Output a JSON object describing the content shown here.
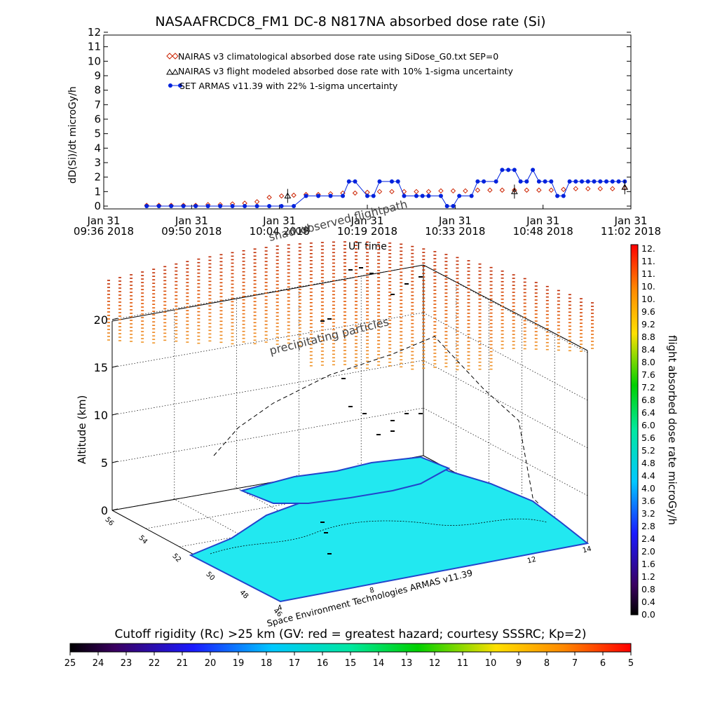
{
  "title": "NASAAFRCDC8_FM1 DC-8   N817NA absorbed dose rate (Si)",
  "top_ylabel": "dD(Si)/dt microGy/h",
  "top_xlabel": "UT time",
  "top_xticks": [
    {
      "date": "Jan 31",
      "time": "09:36 2018"
    },
    {
      "date": "Jan 31",
      "time": "09:50 2018"
    },
    {
      "date": "Jan 31",
      "time": "10:04 2018"
    },
    {
      "date": "Jan 31",
      "time": "10:19 2018"
    },
    {
      "date": "Jan 31",
      "time": "10:33 2018"
    },
    {
      "date": "Jan 31",
      "time": "10:48 2018"
    },
    {
      "date": "Jan 31",
      "time": "11:02 2018"
    }
  ],
  "legend": [
    "NAIRAS v3 climatological absorbed dose rate using SiDose_G0.txt SEP=0",
    "NAIRAS v3 flight modeled absorbed dose rate with 10% 1-sigma uncertainty",
    "SET ARMAS v11.39 with 22% 1-sigma uncertainty"
  ],
  "annotations": {
    "shadow": "shadow",
    "flightpath": "observed flightpath",
    "particles": "precipitating particles",
    "credit": "Space Environment Technologies ARMAS v11.39"
  },
  "z_axis_label": "Altitude (km)",
  "z_ticks": [
    "0",
    "5",
    "10",
    "15",
    "20"
  ],
  "lat_ticks": [
    "56",
    "54",
    "52",
    "50",
    "48",
    "46"
  ],
  "lon_ticks": [
    "4",
    "8",
    "12",
    "14"
  ],
  "right_colorbar": {
    "label": "flight absorbed dose rate microGy/h",
    "ticks": [
      "12.",
      "11.",
      "11.",
      "10.",
      "10.",
      "9.6",
      "9.2",
      "8.8",
      "8.4",
      "8.0",
      "7.6",
      "7.2",
      "6.8",
      "6.4",
      "6.0",
      "5.6",
      "5.2",
      "4.8",
      "4.4",
      "4.0",
      "3.6",
      "3.2",
      "2.8",
      "2.4",
      "2.0",
      "1.6",
      "1.2",
      "0.8",
      "0.4",
      "0.0"
    ]
  },
  "bottom_colorbar": {
    "title": "Cutoff rigidity (Rc) >25 km (GV: red = greatest hazard; courtesy SSSRC; Kp=2)",
    "ticks": [
      "25",
      "24",
      "23",
      "22",
      "21",
      "20",
      "19",
      "18",
      "17",
      "16",
      "15",
      "14",
      "13",
      "12",
      "11",
      "10",
      "9",
      "8",
      "7",
      "6",
      "5"
    ]
  },
  "colors": {
    "climatological": "#cc2200",
    "armas": "#0022dd",
    "map_fill": "#22e8f0",
    "coast": "#2244cc"
  },
  "chart_data": {
    "type": "line",
    "x_unit": "UT time, Jan 31 2018",
    "x_range": [
      "09:36",
      "11:02"
    ],
    "ylim": [
      0,
      12
    ],
    "yticks": [
      0,
      1,
      2,
      3,
      4,
      5,
      6,
      7,
      8,
      9,
      10,
      11,
      12
    ],
    "series": [
      {
        "name": "NAIRAS v3 climatological absorbed dose rate using SiDose_G0.txt SEP=0",
        "x": [
          "09:43",
          "09:45",
          "09:47",
          "09:49",
          "09:51",
          "09:53",
          "09:55",
          "09:57",
          "09:59",
          "10:01",
          "10:03",
          "10:05",
          "10:07",
          "10:09",
          "10:11",
          "10:13",
          "10:15",
          "10:17",
          "10:19",
          "10:21",
          "10:23",
          "10:25",
          "10:27",
          "10:29",
          "10:31",
          "10:33",
          "10:35",
          "10:37",
          "10:39",
          "10:41",
          "10:43",
          "10:45",
          "10:47",
          "10:49",
          "10:51",
          "10:53",
          "10:55",
          "10:57",
          "10:59",
          "11:01"
        ],
        "y": [
          0.05,
          0.05,
          0.05,
          0.05,
          0.05,
          0.1,
          0.1,
          0.15,
          0.2,
          0.3,
          0.6,
          0.7,
          0.75,
          0.8,
          0.8,
          0.85,
          0.9,
          0.9,
          0.95,
          1.0,
          1.0,
          1.0,
          1.0,
          1.0,
          1.05,
          1.05,
          1.05,
          1.1,
          1.1,
          1.1,
          1.1,
          1.1,
          1.1,
          1.1,
          1.15,
          1.2,
          1.2,
          1.2,
          1.2,
          1.25
        ]
      },
      {
        "name": "NAIRAS v3 flight modeled absorbed dose rate with 10% 1-sigma uncertainty",
        "x": [
          "10:06",
          "10:43",
          "11:01"
        ],
        "y": [
          0.7,
          1.0,
          1.3
        ]
      },
      {
        "name": "SET ARMAS v11.39 with 22% 1-sigma uncertainty",
        "x": [
          "09:43",
          "09:45",
          "09:47",
          "09:49",
          "09:51",
          "09:53",
          "09:55",
          "09:57",
          "09:59",
          "10:01",
          "10:03",
          "10:05",
          "10:07",
          "10:09",
          "10:11",
          "10:13",
          "10:15",
          "10:16",
          "10:17",
          "10:19",
          "10:20",
          "10:21",
          "10:23",
          "10:24",
          "10:25",
          "10:27",
          "10:28",
          "10:29",
          "10:31",
          "10:32",
          "10:33",
          "10:34",
          "10:36",
          "10:37",
          "10:38",
          "10:40",
          "10:41",
          "10:42",
          "10:43",
          "10:44",
          "10:45",
          "10:46",
          "10:47",
          "10:48",
          "10:49",
          "10:50",
          "10:51",
          "10:52",
          "10:53",
          "10:54",
          "10:55",
          "10:56",
          "10:57",
          "10:58",
          "10:59",
          "11:00",
          "11:01"
        ],
        "y": [
          0.0,
          0.0,
          0.0,
          0.0,
          0.0,
          0.0,
          0.0,
          0.0,
          0.0,
          0.0,
          0.0,
          0.0,
          0.0,
          0.7,
          0.7,
          0.7,
          0.7,
          1.7,
          1.7,
          0.7,
          0.7,
          1.7,
          1.7,
          1.7,
          0.7,
          0.7,
          0.7,
          0.7,
          0.7,
          0.0,
          0.0,
          0.7,
          0.7,
          1.7,
          1.7,
          1.7,
          2.5,
          2.5,
          2.5,
          1.7,
          1.7,
          2.5,
          1.7,
          1.7,
          1.7,
          0.7,
          0.7,
          1.7,
          1.7,
          1.7,
          1.7,
          1.7,
          1.7,
          1.7,
          1.7,
          1.7,
          1.7
        ]
      }
    ]
  }
}
